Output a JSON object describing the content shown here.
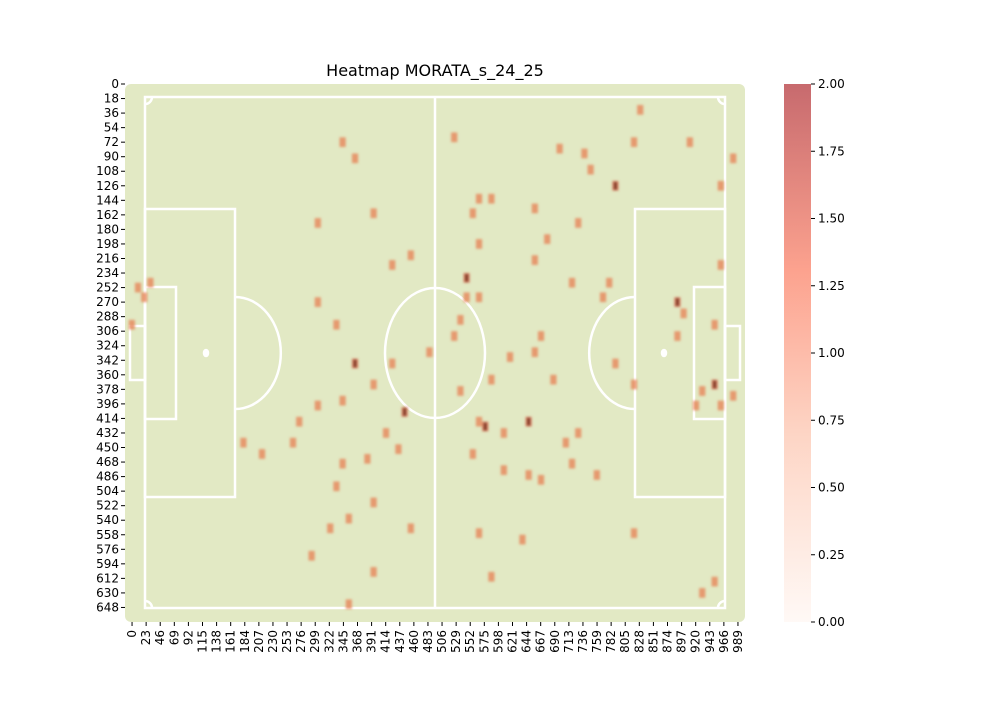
{
  "chart_data": {
    "type": "heatmap",
    "title": "Heatmap MORATA_s_24_25",
    "xlabel": "",
    "ylabel": "",
    "x_range": [
      0,
      1000
    ],
    "y_range": [
      0,
      666
    ],
    "x_ticks": [
      "0",
      "23",
      "46",
      "69",
      "92",
      "115",
      "138",
      "161",
      "184",
      "207",
      "230",
      "253",
      "276",
      "299",
      "322",
      "345",
      "368",
      "391",
      "414",
      "437",
      "460",
      "483",
      "506",
      "529",
      "552",
      "575",
      "598",
      "621",
      "644",
      "667",
      "690",
      "713",
      "736",
      "759",
      "782",
      "805",
      "828",
      "851",
      "874",
      "897",
      "920",
      "943",
      "966",
      "989"
    ],
    "y_ticks": [
      "0",
      "18",
      "36",
      "54",
      "72",
      "90",
      "108",
      "126",
      "144",
      "162",
      "180",
      "198",
      "216",
      "234",
      "252",
      "270",
      "288",
      "306",
      "324",
      "342",
      "360",
      "378",
      "396",
      "414",
      "432",
      "450",
      "468",
      "486",
      "504",
      "522",
      "540",
      "558",
      "576",
      "594",
      "612",
      "630",
      "648"
    ],
    "colorbar": {
      "min": 0,
      "max": 2.0,
      "ticks": [
        "0.00",
        "0.25",
        "0.50",
        "0.75",
        "1.00",
        "1.25",
        "1.50",
        "1.75",
        "2.00"
      ],
      "colors": [
        "#fff5f0",
        "#fcbba1",
        "#fb6a4a",
        "#a50f15"
      ]
    },
    "pitch_color": "#e2e9c4",
    "line_color": "#ffffff",
    "cell_size": [
      10,
      12
    ],
    "points": [
      {
        "x": 351,
        "y": 72,
        "v": 1
      },
      {
        "x": 371,
        "y": 92,
        "v": 1
      },
      {
        "x": 531,
        "y": 66,
        "v": 1
      },
      {
        "x": 831,
        "y": 32,
        "v": 1
      },
      {
        "x": 701,
        "y": 80,
        "v": 1
      },
      {
        "x": 741,
        "y": 86,
        "v": 1
      },
      {
        "x": 821,
        "y": 72,
        "v": 1
      },
      {
        "x": 911,
        "y": 72,
        "v": 1
      },
      {
        "x": 981,
        "y": 92,
        "v": 1
      },
      {
        "x": 751,
        "y": 106,
        "v": 1
      },
      {
        "x": 791,
        "y": 126,
        "v": 2
      },
      {
        "x": 961,
        "y": 126,
        "v": 1
      },
      {
        "x": 571,
        "y": 142,
        "v": 1
      },
      {
        "x": 591,
        "y": 142,
        "v": 1
      },
      {
        "x": 401,
        "y": 160,
        "v": 1
      },
      {
        "x": 561,
        "y": 160,
        "v": 1
      },
      {
        "x": 661,
        "y": 154,
        "v": 1
      },
      {
        "x": 311,
        "y": 172,
        "v": 1
      },
      {
        "x": 731,
        "y": 172,
        "v": 1
      },
      {
        "x": 681,
        "y": 192,
        "v": 1
      },
      {
        "x": 571,
        "y": 198,
        "v": 1
      },
      {
        "x": 461,
        "y": 212,
        "v": 1
      },
      {
        "x": 431,
        "y": 224,
        "v": 1
      },
      {
        "x": 661,
        "y": 218,
        "v": 1
      },
      {
        "x": 961,
        "y": 224,
        "v": 1
      },
      {
        "x": 41,
        "y": 246,
        "v": 1
      },
      {
        "x": 21,
        "y": 252,
        "v": 1
      },
      {
        "x": 31,
        "y": 264,
        "v": 1
      },
      {
        "x": 551,
        "y": 240,
        "v": 2
      },
      {
        "x": 721,
        "y": 246,
        "v": 1
      },
      {
        "x": 781,
        "y": 246,
        "v": 1
      },
      {
        "x": 311,
        "y": 270,
        "v": 1
      },
      {
        "x": 551,
        "y": 264,
        "v": 1
      },
      {
        "x": 571,
        "y": 264,
        "v": 1
      },
      {
        "x": 771,
        "y": 264,
        "v": 1
      },
      {
        "x": 891,
        "y": 270,
        "v": 2
      },
      {
        "x": 11,
        "y": 298,
        "v": 1
      },
      {
        "x": 341,
        "y": 298,
        "v": 1
      },
      {
        "x": 541,
        "y": 292,
        "v": 1
      },
      {
        "x": 901,
        "y": 284,
        "v": 1
      },
      {
        "x": 951,
        "y": 298,
        "v": 1
      },
      {
        "x": 531,
        "y": 312,
        "v": 1
      },
      {
        "x": 671,
        "y": 312,
        "v": 1
      },
      {
        "x": 891,
        "y": 312,
        "v": 1
      },
      {
        "x": 491,
        "y": 332,
        "v": 1
      },
      {
        "x": 371,
        "y": 346,
        "v": 2
      },
      {
        "x": 431,
        "y": 346,
        "v": 1
      },
      {
        "x": 621,
        "y": 338,
        "v": 1
      },
      {
        "x": 661,
        "y": 332,
        "v": 1
      },
      {
        "x": 791,
        "y": 346,
        "v": 1
      },
      {
        "x": 401,
        "y": 372,
        "v": 1
      },
      {
        "x": 591,
        "y": 366,
        "v": 1
      },
      {
        "x": 691,
        "y": 366,
        "v": 1
      },
      {
        "x": 821,
        "y": 372,
        "v": 1
      },
      {
        "x": 541,
        "y": 380,
        "v": 1
      },
      {
        "x": 931,
        "y": 380,
        "v": 1
      },
      {
        "x": 951,
        "y": 372,
        "v": 2
      },
      {
        "x": 981,
        "y": 386,
        "v": 1
      },
      {
        "x": 351,
        "y": 392,
        "v": 1
      },
      {
        "x": 311,
        "y": 398,
        "v": 1
      },
      {
        "x": 451,
        "y": 406,
        "v": 2
      },
      {
        "x": 921,
        "y": 398,
        "v": 1
      },
      {
        "x": 961,
        "y": 398,
        "v": 1
      },
      {
        "x": 281,
        "y": 418,
        "v": 1
      },
      {
        "x": 571,
        "y": 418,
        "v": 1
      },
      {
        "x": 581,
        "y": 424,
        "v": 2
      },
      {
        "x": 651,
        "y": 418,
        "v": 2
      },
      {
        "x": 421,
        "y": 432,
        "v": 1
      },
      {
        "x": 611,
        "y": 432,
        "v": 1
      },
      {
        "x": 731,
        "y": 432,
        "v": 1
      },
      {
        "x": 191,
        "y": 444,
        "v": 1
      },
      {
        "x": 271,
        "y": 444,
        "v": 1
      },
      {
        "x": 441,
        "y": 452,
        "v": 1
      },
      {
        "x": 711,
        "y": 444,
        "v": 1
      },
      {
        "x": 221,
        "y": 458,
        "v": 1
      },
      {
        "x": 561,
        "y": 458,
        "v": 1
      },
      {
        "x": 391,
        "y": 464,
        "v": 1
      },
      {
        "x": 351,
        "y": 470,
        "v": 1
      },
      {
        "x": 721,
        "y": 470,
        "v": 1
      },
      {
        "x": 611,
        "y": 478,
        "v": 1
      },
      {
        "x": 651,
        "y": 484,
        "v": 1
      },
      {
        "x": 671,
        "y": 490,
        "v": 1
      },
      {
        "x": 761,
        "y": 484,
        "v": 1
      },
      {
        "x": 341,
        "y": 498,
        "v": 1
      },
      {
        "x": 401,
        "y": 518,
        "v": 1
      },
      {
        "x": 361,
        "y": 538,
        "v": 1
      },
      {
        "x": 331,
        "y": 550,
        "v": 1
      },
      {
        "x": 461,
        "y": 550,
        "v": 1
      },
      {
        "x": 571,
        "y": 556,
        "v": 1
      },
      {
        "x": 641,
        "y": 564,
        "v": 1
      },
      {
        "x": 821,
        "y": 556,
        "v": 1
      },
      {
        "x": 301,
        "y": 584,
        "v": 1
      },
      {
        "x": 401,
        "y": 604,
        "v": 1
      },
      {
        "x": 591,
        "y": 610,
        "v": 1
      },
      {
        "x": 951,
        "y": 616,
        "v": 1
      },
      {
        "x": 931,
        "y": 630,
        "v": 1
      },
      {
        "x": 361,
        "y": 644,
        "v": 1
      }
    ]
  }
}
